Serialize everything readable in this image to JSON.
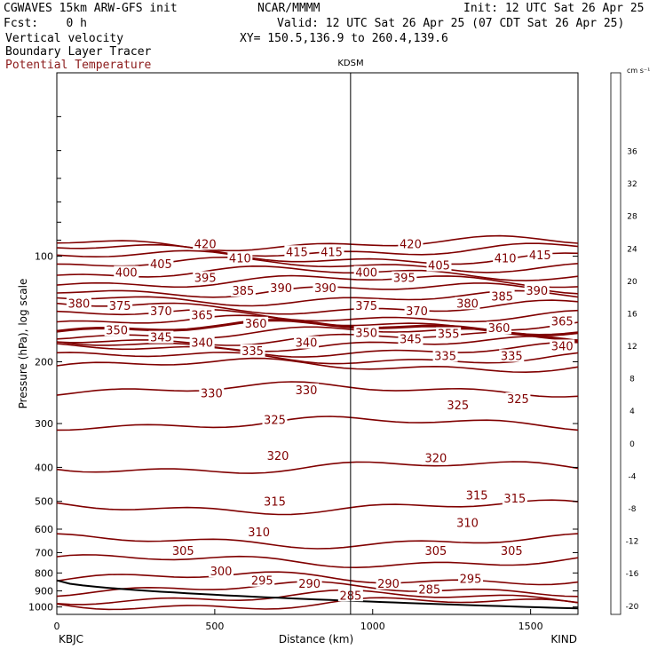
{
  "header": {
    "model": "CGWAVES 15km ARW-GFS init",
    "center": "NCAR/MMMM",
    "init": "Init: 12 UTC Sat 26 Apr 25",
    "fcst": "Fcst:    0 h",
    "valid": "Valid: 12 UTC Sat 26 Apr 25 (07 CDT Sat 26 Apr 25)",
    "field1": "Vertical velocity",
    "field2": "Boundary Layer Tracer",
    "field3": "Potential Temperature",
    "xy": "XY= 150.5,136.9 to 260.4,139.6",
    "station_mid": "KDSM",
    "station_left": "KBJC",
    "station_right": "KIND",
    "colorbar_units": "cm s⁻¹"
  },
  "chart_data": {
    "type": "line",
    "title": "Potential Temperature",
    "xlabel": "Distance (km)",
    "ylabel": "Pressure (hPa), log scale",
    "xlim": [
      0,
      1650
    ],
    "ylim": [
      1050,
      30
    ],
    "y_scale": "log",
    "x_ticks": [
      "0",
      "500",
      "1000",
      "1500"
    ],
    "x_tick_values": [
      0,
      500,
      1000,
      1500
    ],
    "y_ticks": [
      "100",
      "200",
      "300",
      "400",
      "500",
      "600",
      "700",
      "800",
      "900",
      "1000"
    ],
    "y_tick_values": [
      100,
      200,
      300,
      400,
      500,
      600,
      700,
      800,
      900,
      1000
    ],
    "vertical_marker_km": 930,
    "contour_color": "#800000",
    "theta_levels": [
      {
        "theta": 285,
        "pressure": 980
      },
      {
        "theta": 290,
        "pressure": 940
      },
      {
        "theta": 295,
        "pressure": 890
      },
      {
        "theta": 300,
        "pressure": 830
      },
      {
        "theta": 305,
        "pressure": 740
      },
      {
        "theta": 310,
        "pressure": 650
      },
      {
        "theta": 315,
        "pressure": 520
      },
      {
        "theta": 320,
        "pressure": 400
      },
      {
        "theta": 325,
        "pressure": 300
      },
      {
        "theta": 330,
        "pressure": 240
      },
      {
        "theta": 335,
        "pressure": 205
      },
      {
        "theta": 340,
        "pressure": 195
      },
      {
        "theta": 345,
        "pressure": 185
      },
      {
        "theta": 350,
        "pressure": 178
      },
      {
        "theta": 355,
        "pressure": 172
      },
      {
        "theta": 360,
        "pressure": 166
      },
      {
        "theta": 365,
        "pressure": 160
      },
      {
        "theta": 370,
        "pressure": 155
      },
      {
        "theta": 375,
        "pressure": 148
      },
      {
        "theta": 380,
        "pressure": 140
      },
      {
        "theta": 385,
        "pressure": 132
      },
      {
        "theta": 390,
        "pressure": 125
      },
      {
        "theta": 395,
        "pressure": 118
      },
      {
        "theta": 400,
        "pressure": 112
      },
      {
        "theta": 405,
        "pressure": 106
      },
      {
        "theta": 410,
        "pressure": 101
      },
      {
        "theta": 415,
        "pressure": 96
      },
      {
        "theta": 420,
        "pressure": 92
      }
    ],
    "contour_labels": [
      {
        "text": "420",
        "x": 470,
        "p": 92
      },
      {
        "text": "410",
        "x": 580,
        "p": 101
      },
      {
        "text": "415",
        "x": 760,
        "p": 97
      },
      {
        "text": "415",
        "x": 870,
        "p": 97
      },
      {
        "text": "420",
        "x": 1120,
        "p": 92
      },
      {
        "text": "410",
        "x": 1420,
        "p": 101
      },
      {
        "text": "415",
        "x": 1530,
        "p": 99
      },
      {
        "text": "405",
        "x": 330,
        "p": 105
      },
      {
        "text": "405",
        "x": 1210,
        "p": 106
      },
      {
        "text": "400",
        "x": 220,
        "p": 111
      },
      {
        "text": "400",
        "x": 980,
        "p": 111
      },
      {
        "text": "395",
        "x": 470,
        "p": 115
      },
      {
        "text": "395",
        "x": 1100,
        "p": 115
      },
      {
        "text": "390",
        "x": 710,
        "p": 123
      },
      {
        "text": "390",
        "x": 850,
        "p": 123
      },
      {
        "text": "390",
        "x": 1520,
        "p": 125
      },
      {
        "text": "385",
        "x": 590,
        "p": 125
      },
      {
        "text": "385",
        "x": 1410,
        "p": 130
      },
      {
        "text": "380",
        "x": 70,
        "p": 136
      },
      {
        "text": "380",
        "x": 1300,
        "p": 136
      },
      {
        "text": "375",
        "x": 200,
        "p": 138
      },
      {
        "text": "375",
        "x": 980,
        "p": 138
      },
      {
        "text": "370",
        "x": 330,
        "p": 143
      },
      {
        "text": "370",
        "x": 1140,
        "p": 143
      },
      {
        "text": "365",
        "x": 460,
        "p": 147
      },
      {
        "text": "365",
        "x": 1600,
        "p": 153
      },
      {
        "text": "360",
        "x": 630,
        "p": 155
      },
      {
        "text": "360",
        "x": 1400,
        "p": 160
      },
      {
        "text": "355",
        "x": 1240,
        "p": 166
      },
      {
        "text": "350",
        "x": 190,
        "p": 162
      },
      {
        "text": "350",
        "x": 980,
        "p": 165
      },
      {
        "text": "345",
        "x": 330,
        "p": 170
      },
      {
        "text": "345",
        "x": 1120,
        "p": 172
      },
      {
        "text": "340",
        "x": 460,
        "p": 176
      },
      {
        "text": "340",
        "x": 790,
        "p": 176
      },
      {
        "text": "340",
        "x": 1600,
        "p": 180
      },
      {
        "text": "335",
        "x": 620,
        "p": 186
      },
      {
        "text": "335",
        "x": 1230,
        "p": 192
      },
      {
        "text": "335",
        "x": 1440,
        "p": 192
      },
      {
        "text": "330",
        "x": 490,
        "p": 245
      },
      {
        "text": "330",
        "x": 790,
        "p": 240
      },
      {
        "text": "325",
        "x": 690,
        "p": 292
      },
      {
        "text": "325",
        "x": 1270,
        "p": 265
      },
      {
        "text": "325",
        "x": 1460,
        "p": 255
      },
      {
        "text": "320",
        "x": 700,
        "p": 370
      },
      {
        "text": "320",
        "x": 1200,
        "p": 375
      },
      {
        "text": "315",
        "x": 690,
        "p": 500
      },
      {
        "text": "315",
        "x": 1330,
        "p": 480
      },
      {
        "text": "315",
        "x": 1450,
        "p": 490
      },
      {
        "text": "310",
        "x": 640,
        "p": 610
      },
      {
        "text": "310",
        "x": 1300,
        "p": 575
      },
      {
        "text": "305",
        "x": 400,
        "p": 690
      },
      {
        "text": "305",
        "x": 1200,
        "p": 690
      },
      {
        "text": "305",
        "x": 1440,
        "p": 690
      },
      {
        "text": "300",
        "x": 520,
        "p": 790
      },
      {
        "text": "295",
        "x": 650,
        "p": 840
      },
      {
        "text": "295",
        "x": 1310,
        "p": 830
      },
      {
        "text": "290",
        "x": 800,
        "p": 855
      },
      {
        "text": "290",
        "x": 1050,
        "p": 855
      },
      {
        "text": "285",
        "x": 930,
        "p": 925
      },
      {
        "text": "285",
        "x": 1180,
        "p": 890
      }
    ],
    "colorbar": {
      "ticks": [
        "36",
        "32",
        "28",
        "24",
        "20",
        "16",
        "12",
        "8",
        "4",
        "0",
        "-4",
        "-8",
        "-12",
        "-16",
        "-20"
      ],
      "colors": [
        "#ff0000",
        "#ff2a00",
        "#ff5500",
        "#ff7f00",
        "#ff9f00",
        "#ffbf00",
        "#ffdf00",
        "#ffff00",
        "#ccff00",
        "#66dd00",
        "#22cc22",
        "#33dd55",
        "#55ee77",
        "#88f09a",
        "#bff5c5",
        "#ffffff",
        "#ffffff",
        "#e0b0e0",
        "#c080c8",
        "#a050b0",
        "#800090",
        "#7020a0",
        "#6a3ab0",
        "#6a5ad0",
        "#8080f0"
      ]
    }
  }
}
